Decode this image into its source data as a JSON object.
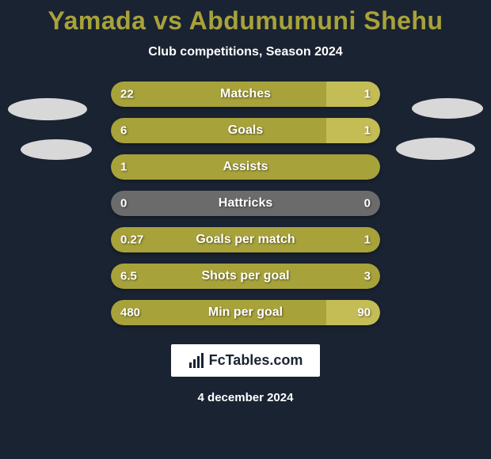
{
  "title": "Yamada vs Abdumumuni Shehu",
  "subtitle": "Club competitions, Season 2024",
  "colors": {
    "background": "#1a2332",
    "title_color": "#a8a23a",
    "bar_left": "#a8a23a",
    "bar_right": "#c4bd56",
    "bar_neutral": "#6b6b6b",
    "ellipse": "#d8d8d8",
    "text": "#ffffff",
    "footer_bg": "#ffffff",
    "footer_text": "#1a2332"
  },
  "stats": [
    {
      "label": "Matches",
      "left_value": "22",
      "right_value": "1",
      "left_pct": 80,
      "right_pct": 20,
      "left_color": "#a8a23a",
      "right_color": "#c4bd56"
    },
    {
      "label": "Goals",
      "left_value": "6",
      "right_value": "1",
      "left_pct": 80,
      "right_pct": 20,
      "left_color": "#a8a23a",
      "right_color": "#c4bd56"
    },
    {
      "label": "Assists",
      "left_value": "1",
      "right_value": "",
      "left_pct": 100,
      "right_pct": 0,
      "left_color": "#a8a23a",
      "right_color": "#c4bd56"
    },
    {
      "label": "Hattricks",
      "left_value": "0",
      "right_value": "0",
      "left_pct": 0,
      "right_pct": 0,
      "left_color": "#6b6b6b",
      "right_color": "#6b6b6b",
      "neutral": true
    },
    {
      "label": "Goals per match",
      "left_value": "0.27",
      "right_value": "1",
      "left_pct": 100,
      "right_pct": 0,
      "left_color": "#a8a23a",
      "right_color": "#c4bd56"
    },
    {
      "label": "Shots per goal",
      "left_value": "6.5",
      "right_value": "3",
      "left_pct": 100,
      "right_pct": 0,
      "left_color": "#a8a23a",
      "right_color": "#c4bd56"
    },
    {
      "label": "Min per goal",
      "left_value": "480",
      "right_value": "90",
      "left_pct": 80,
      "right_pct": 20,
      "left_color": "#a8a23a",
      "right_color": "#c4bd56"
    }
  ],
  "footer": {
    "brand": "FcTables.com"
  },
  "date": "4 december 2024"
}
